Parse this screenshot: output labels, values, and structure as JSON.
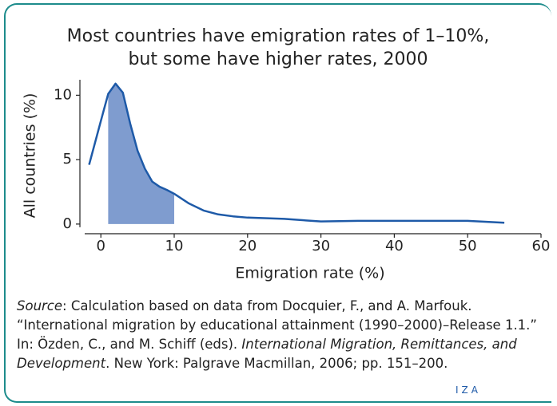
{
  "chart_data": {
    "type": "line",
    "title": [
      "Most countries have emigration rates of 1–10%,",
      "but some have higher rates, 2000"
    ],
    "x_label": "Emigration rate (%)",
    "y_label": "All countries (%)",
    "x": [
      -1.6,
      0,
      1,
      2,
      3,
      4,
      5,
      6,
      7,
      8,
      9,
      10,
      12,
      14,
      16,
      18,
      20,
      25,
      30,
      35,
      40,
      45,
      50,
      55
    ],
    "series": [
      {
        "name": "All countries",
        "color": "#1e5aa8",
        "values": [
          4.6,
          8,
          10.1,
          10.9,
          10.2,
          7.8,
          5.7,
          4.3,
          3.3,
          2.9,
          2.65,
          2.35,
          1.6,
          1.05,
          0.75,
          0.6,
          0.5,
          0.4,
          0.2,
          0.25,
          0.25,
          0.25,
          0.25,
          0.1
        ]
      }
    ],
    "shade": [
      1,
      10
    ],
    "shade_color": "#7f9ccf",
    "xlim": [
      -2.2,
      60
    ],
    "ylim": [
      -0.75,
      11.2
    ],
    "xticks": [
      0,
      10,
      20,
      30,
      40,
      50,
      60
    ],
    "yticks": [
      0,
      5,
      10
    ]
  },
  "source": [
    {
      "text": "Source",
      "italic": true
    },
    {
      "text": ": Calculation based on data from Docquier, F., and A. Marfouk. “International migration by educational attainment (1990–2000)–Release 1.1.” In: Özden, C., and M. Schiff (eds). ",
      "italic": false
    },
    {
      "text": "International Migration, Remittances, and Development",
      "italic": true
    },
    {
      "text": ". New York: Palgrave Macmillan, 2006; pp. 151–200.",
      "italic": false
    }
  ],
  "logo": "IZA"
}
